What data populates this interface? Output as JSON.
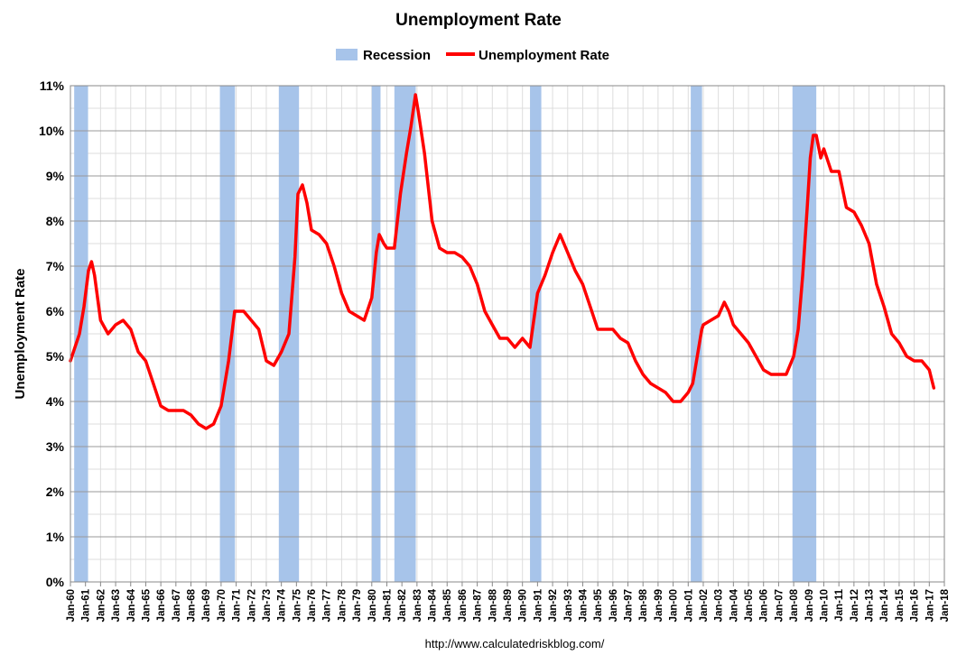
{
  "chart_data": {
    "type": "line",
    "title": "Unemployment Rate",
    "ylabel": "Unemployment Rate",
    "xlabel": "",
    "ylim": [
      0,
      11
    ],
    "y_ticks": [
      "0%",
      "1%",
      "2%",
      "3%",
      "4%",
      "5%",
      "6%",
      "7%",
      "8%",
      "9%",
      "10%",
      "11%"
    ],
    "xlim": [
      1960,
      2018
    ],
    "x_ticks": [
      "Jan-60",
      "Jan-61",
      "Jan-62",
      "Jan-63",
      "Jan-64",
      "Jan-65",
      "Jan-66",
      "Jan-67",
      "Jan-68",
      "Jan-69",
      "Jan-70",
      "Jan-71",
      "Jan-72",
      "Jan-73",
      "Jan-74",
      "Jan-75",
      "Jan-76",
      "Jan-77",
      "Jan-78",
      "Jan-79",
      "Jan-80",
      "Jan-81",
      "Jan-82",
      "Jan-83",
      "Jan-84",
      "Jan-85",
      "Jan-86",
      "Jan-87",
      "Jan-88",
      "Jan-89",
      "Jan-90",
      "Jan-91",
      "Jan-92",
      "Jan-93",
      "Jan-94",
      "Jan-95",
      "Jan-96",
      "Jan-97",
      "Jan-98",
      "Jan-99",
      "Jan-00",
      "Jan-01",
      "Jan-02",
      "Jan-03",
      "Jan-04",
      "Jan-05",
      "Jan-06",
      "Jan-07",
      "Jan-08",
      "Jan-09",
      "Jan-10",
      "Jan-11",
      "Jan-12",
      "Jan-13",
      "Jan-14",
      "Jan-15",
      "Jan-16",
      "Jan-17",
      "Jan-18"
    ],
    "grid": true,
    "legend": {
      "placement": "top-center",
      "entries": [
        {
          "name": "Recession",
          "color": "#a7c4ea",
          "kind": "band"
        },
        {
          "name": "Unemployment Rate",
          "color": "#ff0000",
          "kind": "line"
        }
      ]
    },
    "recessions": [
      {
        "start": 1960.25,
        "end": 1961.17
      },
      {
        "start": 1969.92,
        "end": 1970.92
      },
      {
        "start": 1973.83,
        "end": 1975.17
      },
      {
        "start": 1980.0,
        "end": 1980.58
      },
      {
        "start": 1981.5,
        "end": 1982.92
      },
      {
        "start": 1990.5,
        "end": 1991.25
      },
      {
        "start": 2001.17,
        "end": 2001.92
      },
      {
        "start": 2007.92,
        "end": 2009.5
      }
    ],
    "series": [
      {
        "name": "Unemployment Rate",
        "color": "#ff0000",
        "x": [
          1960.0,
          1960.3,
          1960.6,
          1960.9,
          1961.2,
          1961.4,
          1961.6,
          1962.0,
          1962.5,
          1963.0,
          1963.5,
          1964.0,
          1964.5,
          1965.0,
          1965.5,
          1966.0,
          1966.5,
          1967.0,
          1967.5,
          1968.0,
          1968.5,
          1969.0,
          1969.5,
          1970.0,
          1970.5,
          1970.9,
          1971.5,
          1972.0,
          1972.5,
          1973.0,
          1973.5,
          1974.0,
          1974.5,
          1974.9,
          1975.1,
          1975.4,
          1975.7,
          1976.0,
          1976.5,
          1977.0,
          1977.5,
          1978.0,
          1978.5,
          1979.0,
          1979.5,
          1980.0,
          1980.3,
          1980.5,
          1980.8,
          1981.0,
          1981.5,
          1981.9,
          1982.3,
          1982.6,
          1982.9,
          1983.1,
          1983.5,
          1984.0,
          1984.5,
          1985.0,
          1985.5,
          1986.0,
          1986.5,
          1987.0,
          1987.5,
          1988.0,
          1988.5,
          1989.0,
          1989.5,
          1990.0,
          1990.5,
          1991.0,
          1991.5,
          1992.0,
          1992.5,
          1993.0,
          1993.5,
          1994.0,
          1994.5,
          1995.0,
          1995.5,
          1996.0,
          1996.5,
          1997.0,
          1997.5,
          1998.0,
          1998.5,
          1999.0,
          1999.5,
          2000.0,
          2000.5,
          2001.0,
          2001.3,
          2001.6,
          2001.9,
          2002.0,
          2002.5,
          2003.0,
          2003.4,
          2003.7,
          2004.0,
          2004.5,
          2005.0,
          2005.5,
          2006.0,
          2006.5,
          2007.0,
          2007.5,
          2008.0,
          2008.3,
          2008.6,
          2008.9,
          2009.1,
          2009.3,
          2009.5,
          2009.8,
          2010.0,
          2010.5,
          2011.0,
          2011.5,
          2012.0,
          2012.5,
          2013.0,
          2013.5,
          2014.0,
          2014.5,
          2015.0,
          2015.5,
          2016.0,
          2016.5,
          2017.0,
          2017.3
        ],
        "values": [
          4.9,
          5.2,
          5.5,
          6.1,
          6.9,
          7.1,
          6.8,
          5.8,
          5.5,
          5.7,
          5.8,
          5.6,
          5.1,
          4.9,
          4.4,
          3.9,
          3.8,
          3.8,
          3.8,
          3.7,
          3.5,
          3.4,
          3.5,
          3.9,
          4.9,
          6.0,
          6.0,
          5.8,
          5.6,
          4.9,
          4.8,
          5.1,
          5.5,
          7.2,
          8.6,
          8.8,
          8.4,
          7.8,
          7.7,
          7.5,
          7.0,
          6.4,
          6.0,
          5.9,
          5.8,
          6.3,
          7.3,
          7.7,
          7.5,
          7.4,
          7.4,
          8.6,
          9.5,
          10.1,
          10.8,
          10.4,
          9.5,
          8.0,
          7.4,
          7.3,
          7.3,
          7.2,
          7.0,
          6.6,
          6.0,
          5.7,
          5.4,
          5.4,
          5.2,
          5.4,
          5.2,
          6.4,
          6.8,
          7.3,
          7.7,
          7.3,
          6.9,
          6.6,
          6.1,
          5.6,
          5.6,
          5.6,
          5.4,
          5.3,
          4.9,
          4.6,
          4.4,
          4.3,
          4.2,
          4.0,
          4.0,
          4.2,
          4.4,
          5.0,
          5.6,
          5.7,
          5.8,
          5.9,
          6.2,
          6.0,
          5.7,
          5.5,
          5.3,
          5.0,
          4.7,
          4.6,
          4.6,
          4.6,
          5.0,
          5.6,
          6.8,
          8.3,
          9.4,
          9.9,
          9.9,
          9.4,
          9.6,
          9.1,
          9.1,
          8.3,
          8.2,
          7.9,
          7.5,
          6.6,
          6.1,
          5.5,
          5.3,
          5.0,
          4.9,
          4.9,
          4.7,
          4.3
        ]
      }
    ]
  },
  "source_text": "http://www.calculatedriskblog.com/"
}
